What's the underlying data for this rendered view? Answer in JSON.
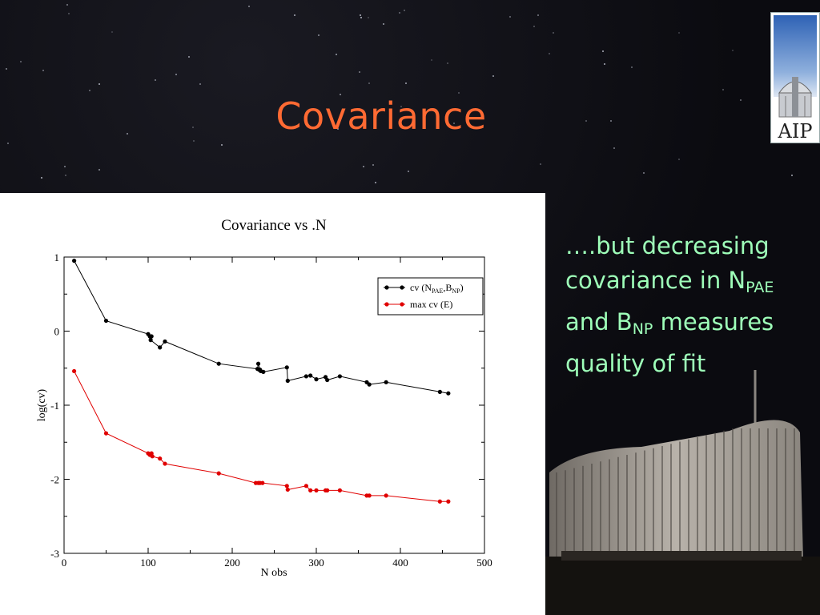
{
  "slide": {
    "title": "Covariance",
    "logo_text": "AIP",
    "side_text": {
      "line1": "….but decreasing",
      "line2_prefix": "covariance in N",
      "line2_sub": "PAE",
      "line3_prefix": "and B",
      "line3_sub": "NP",
      "line3_suffix": " measures",
      "line4": "quality of fit"
    },
    "colors": {
      "title": "#ff6a33",
      "side_text": "#9effb9",
      "background": "#0b0b10"
    }
  },
  "chart_data": {
    "type": "line",
    "title": "Covariance vs .N",
    "xlabel": "N obs",
    "ylabel": "log(cv)",
    "xlim": [
      0,
      500
    ],
    "ylim": [
      -3,
      1
    ],
    "xticks": [
      0,
      100,
      200,
      300,
      400,
      500
    ],
    "yticks": [
      -3,
      -2,
      -1,
      0,
      1
    ],
    "grid": false,
    "legend_position": "top-right",
    "series": [
      {
        "name": "cv (N_PAE, B_NP)",
        "legend_main": "cv (N",
        "legend_sub1": "PAE",
        "legend_mid": ",B",
        "legend_sub2": "NP",
        "legend_end": ")",
        "color": "#000000",
        "x": [
          12,
          50,
          100,
          102,
          104,
          103,
          114,
          120,
          184,
          230,
          231,
          233,
          232,
          234,
          237,
          265,
          266,
          288,
          293,
          300,
          311,
          313,
          328,
          360,
          363,
          383,
          447,
          457
        ],
        "y": [
          0.95,
          0.14,
          -0.04,
          -0.07,
          -0.07,
          -0.12,
          -0.22,
          -0.14,
          -0.44,
          -0.51,
          -0.44,
          -0.52,
          -0.52,
          -0.54,
          -0.55,
          -0.49,
          -0.67,
          -0.61,
          -0.6,
          -0.65,
          -0.62,
          -0.66,
          -0.61,
          -0.69,
          -0.72,
          -0.69,
          -0.82,
          -0.84
        ]
      },
      {
        "name": "max cv (E)",
        "legend_main": "max cv (E)",
        "color": "#e00000",
        "x": [
          12,
          50,
          100,
          102,
          104,
          105,
          114,
          120,
          184,
          228,
          231,
          233,
          236,
          265,
          266,
          288,
          293,
          300,
          311,
          313,
          328,
          360,
          363,
          383,
          447,
          457
        ],
        "y": [
          -0.54,
          -1.38,
          -1.65,
          -1.67,
          -1.65,
          -1.69,
          -1.72,
          -1.79,
          -1.92,
          -2.05,
          -2.05,
          -2.05,
          -2.05,
          -2.09,
          -2.14,
          -2.09,
          -2.15,
          -2.15,
          -2.15,
          -2.15,
          -2.15,
          -2.22,
          -2.22,
          -2.22,
          -2.3,
          -2.3
        ]
      }
    ]
  }
}
